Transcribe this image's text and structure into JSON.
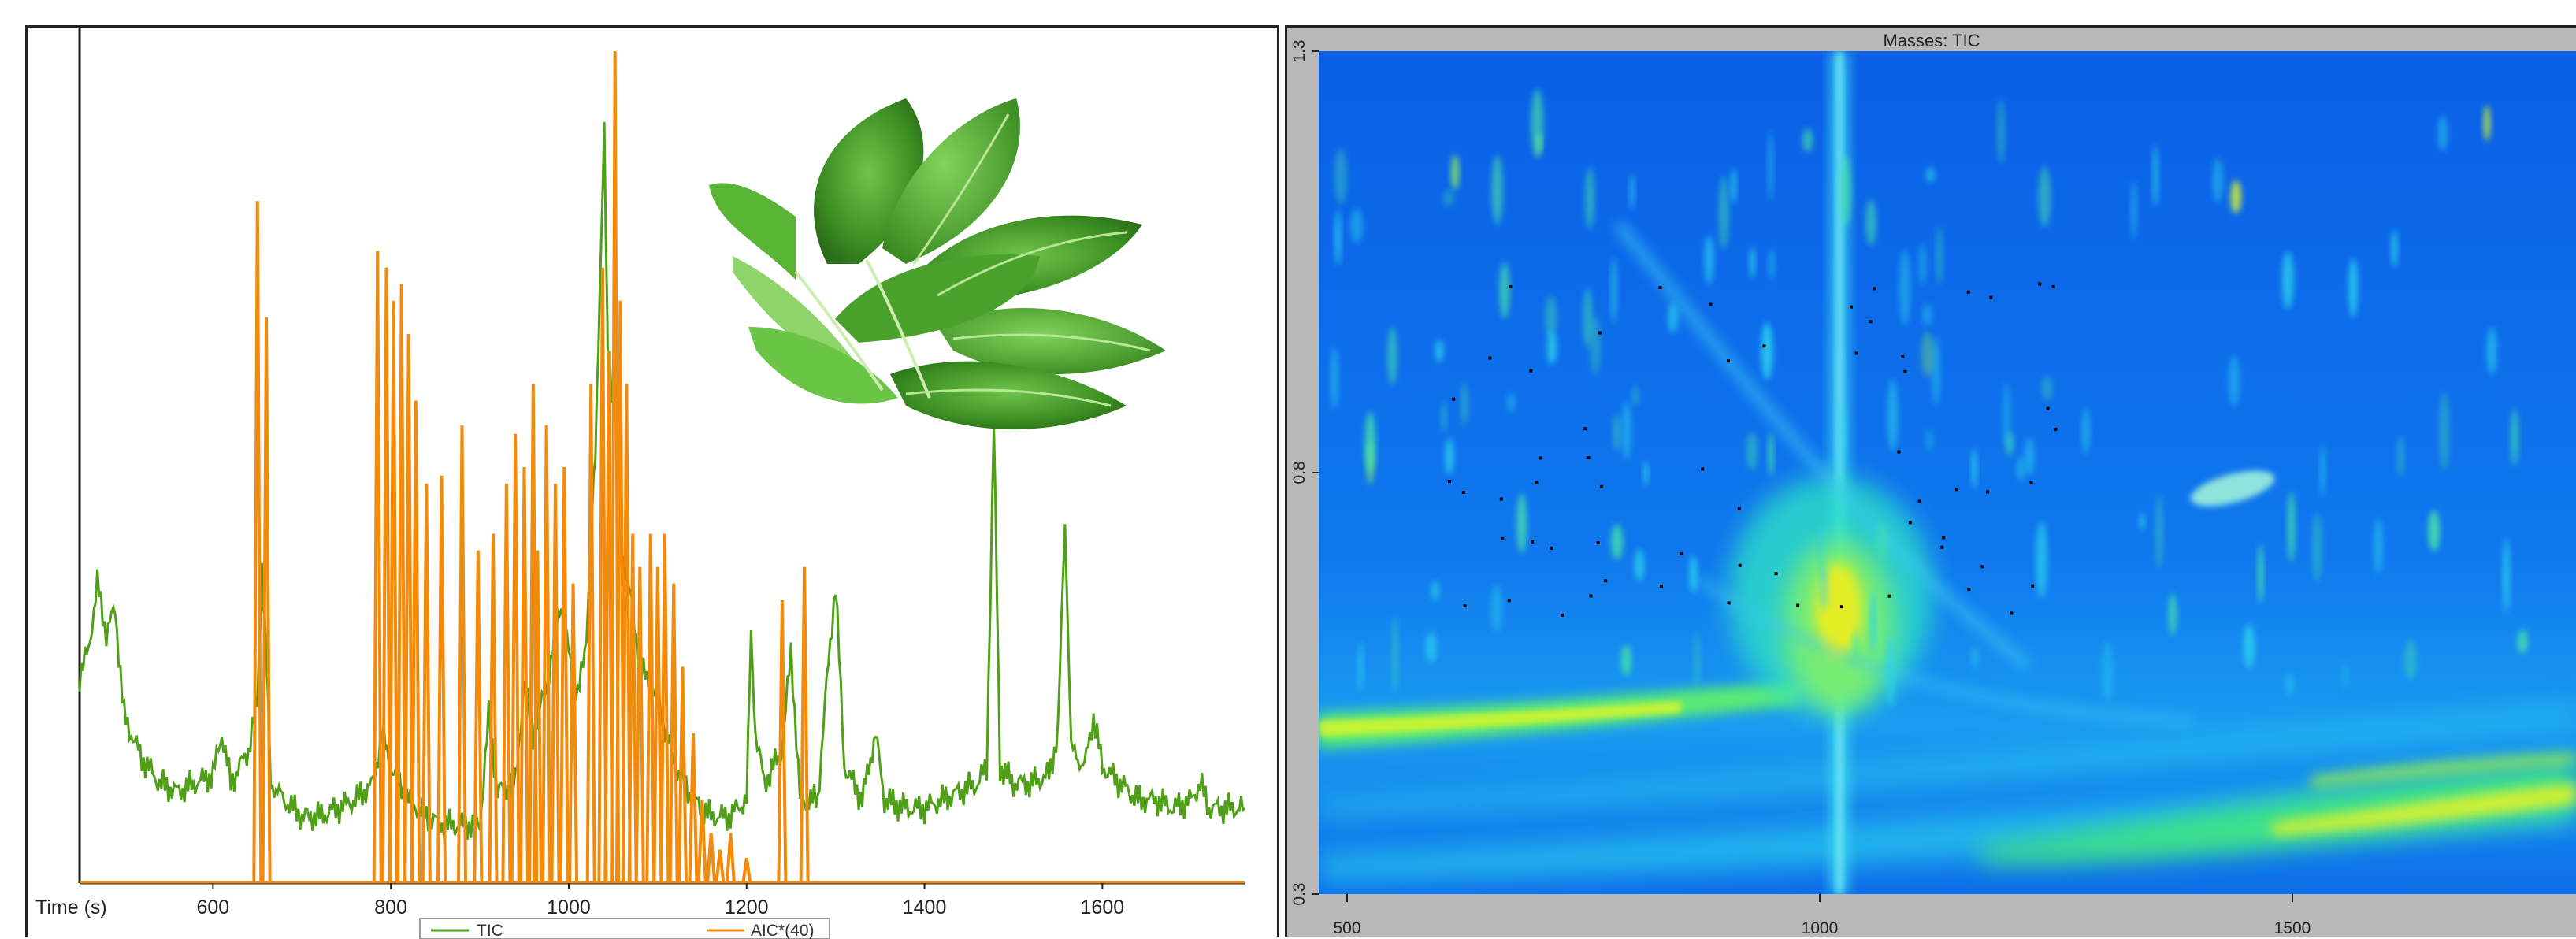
{
  "chart_data": [
    {
      "type": "line",
      "xlabel": "Time (s)",
      "xlim": [
        450,
        1760
      ],
      "x_ticks": [
        600,
        800,
        1000,
        1200,
        1400,
        1600
      ],
      "series": [
        {
          "name": "TIC",
          "color": "#4f9f19",
          "points": [
            [
              450,
              0.25
            ],
            [
              460,
              0.28
            ],
            [
              470,
              0.36
            ],
            [
              480,
              0.3
            ],
            [
              490,
              0.33
            ],
            [
              500,
              0.2
            ],
            [
              520,
              0.15
            ],
            [
              540,
              0.12
            ],
            [
              560,
              0.11
            ],
            [
              580,
              0.12
            ],
            [
              600,
              0.13
            ],
            [
              610,
              0.18
            ],
            [
              620,
              0.12
            ],
            [
              640,
              0.16
            ],
            [
              650,
              0.22
            ],
            [
              655,
              0.38
            ],
            [
              660,
              0.27
            ],
            [
              665,
              0.12
            ],
            [
              680,
              0.1
            ],
            [
              700,
              0.08
            ],
            [
              720,
              0.08
            ],
            [
              740,
              0.09
            ],
            [
              760,
              0.1
            ],
            [
              780,
              0.12
            ],
            [
              790,
              0.18
            ],
            [
              800,
              0.14
            ],
            [
              820,
              0.1
            ],
            [
              840,
              0.08
            ],
            [
              860,
              0.07
            ],
            [
              880,
              0.07
            ],
            [
              900,
              0.07
            ],
            [
              910,
              0.2
            ],
            [
              920,
              0.11
            ],
            [
              940,
              0.12
            ],
            [
              950,
              0.24
            ],
            [
              960,
              0.18
            ],
            [
              980,
              0.26
            ],
            [
              990,
              0.34
            ],
            [
              1000,
              0.28
            ],
            [
              1010,
              0.22
            ],
            [
              1020,
              0.3
            ],
            [
              1030,
              0.52
            ],
            [
              1035,
              0.72
            ],
            [
              1040,
              0.9
            ],
            [
              1045,
              0.55
            ],
            [
              1050,
              0.62
            ],
            [
              1060,
              0.4
            ],
            [
              1070,
              0.34
            ],
            [
              1080,
              0.26
            ],
            [
              1100,
              0.22
            ],
            [
              1120,
              0.14
            ],
            [
              1140,
              0.1
            ],
            [
              1160,
              0.08
            ],
            [
              1180,
              0.08
            ],
            [
              1200,
              0.1
            ],
            [
              1205,
              0.3
            ],
            [
              1210,
              0.18
            ],
            [
              1220,
              0.12
            ],
            [
              1240,
              0.16
            ],
            [
              1250,
              0.28
            ],
            [
              1260,
              0.1
            ],
            [
              1280,
              0.1
            ],
            [
              1290,
              0.24
            ],
            [
              1300,
              0.36
            ],
            [
              1310,
              0.14
            ],
            [
              1330,
              0.1
            ],
            [
              1345,
              0.18
            ],
            [
              1355,
              0.1
            ],
            [
              1380,
              0.09
            ],
            [
              1400,
              0.09
            ],
            [
              1420,
              0.1
            ],
            [
              1440,
              0.11
            ],
            [
              1460,
              0.12
            ],
            [
              1470,
              0.14
            ],
            [
              1478,
              0.55
            ],
            [
              1485,
              0.14
            ],
            [
              1500,
              0.12
            ],
            [
              1520,
              0.12
            ],
            [
              1540,
              0.13
            ],
            [
              1550,
              0.18
            ],
            [
              1558,
              0.44
            ],
            [
              1565,
              0.16
            ],
            [
              1580,
              0.14
            ],
            [
              1590,
              0.2
            ],
            [
              1600,
              0.14
            ],
            [
              1620,
              0.12
            ],
            [
              1640,
              0.1
            ],
            [
              1660,
              0.1
            ],
            [
              1680,
              0.09
            ],
            [
              1700,
              0.1
            ],
            [
              1710,
              0.12
            ],
            [
              1720,
              0.09
            ],
            [
              1740,
              0.09
            ],
            [
              1760,
              0.09
            ]
          ]
        },
        {
          "name": "AIC*(40)",
          "color": "#f28a0c",
          "peaks": [
            [
              650,
              0.82
            ],
            [
              660,
              0.68
            ],
            [
              785,
              0.76
            ],
            [
              795,
              0.74
            ],
            [
              803,
              0.7
            ],
            [
              812,
              0.72
            ],
            [
              820,
              0.66
            ],
            [
              828,
              0.58
            ],
            [
              840,
              0.48
            ],
            [
              857,
              0.49
            ],
            [
              880,
              0.55
            ],
            [
              898,
              0.4
            ],
            [
              915,
              0.42
            ],
            [
              930,
              0.48
            ],
            [
              940,
              0.54
            ],
            [
              950,
              0.5
            ],
            [
              960,
              0.6
            ],
            [
              965,
              0.4
            ],
            [
              975,
              0.55
            ],
            [
              985,
              0.48
            ],
            [
              995,
              0.5
            ],
            [
              1005,
              0.36
            ],
            [
              1025,
              0.6
            ],
            [
              1038,
              0.74
            ],
            [
              1045,
              0.64
            ],
            [
              1052,
              1.0
            ],
            [
              1058,
              0.7
            ],
            [
              1065,
              0.6
            ],
            [
              1072,
              0.42
            ],
            [
              1080,
              0.38
            ],
            [
              1092,
              0.42
            ],
            [
              1100,
              0.38
            ],
            [
              1108,
              0.42
            ],
            [
              1118,
              0.36
            ],
            [
              1128,
              0.26
            ],
            [
              1140,
              0.18
            ],
            [
              1150,
              0.1
            ],
            [
              1160,
              0.06
            ],
            [
              1170,
              0.04
            ],
            [
              1182,
              0.06
            ],
            [
              1200,
              0.03
            ],
            [
              1240,
              0.34
            ],
            [
              1265,
              0.38
            ]
          ]
        }
      ]
    },
    {
      "type": "heatmap",
      "title": "Masses: TIC",
      "xlim": [
        470,
        1800
      ],
      "ylim": [
        0.3,
        1.3
      ],
      "x_ticks": [
        500,
        1000,
        1500
      ],
      "y_ticks": [
        0.3,
        0.8,
        1.3
      ],
      "color_scale": [
        "#0b63e8",
        "#1fa2f0",
        "#26e0e0",
        "#4af07a",
        "#d6f52a",
        "#f7ec1a"
      ]
    }
  ]
}
